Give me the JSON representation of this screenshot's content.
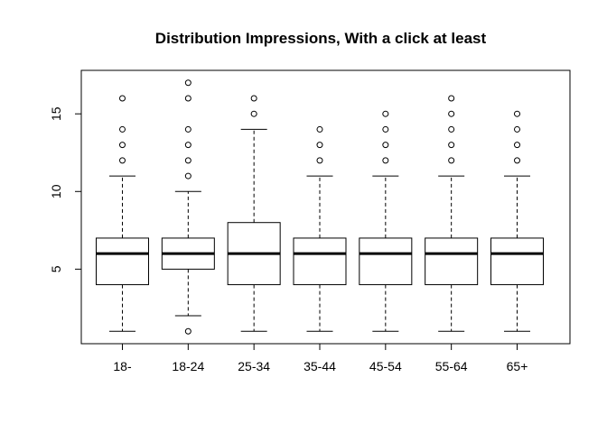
{
  "chart_data": {
    "type": "boxplot",
    "title": "Distribution Impressions, With a click at least",
    "xlabel": "",
    "ylabel": "",
    "ylim": [
      0.2,
      17.8
    ],
    "y_ticks": [
      5,
      10,
      15
    ],
    "grid": false,
    "categories": [
      "18-",
      "18-24",
      "25-34",
      "35-44",
      "45-54",
      "55-64",
      "65+"
    ],
    "boxes": [
      {
        "category": "18-",
        "whisker_low": 1,
        "q1": 4,
        "median": 6,
        "q3": 7,
        "whisker_high": 11,
        "outliers": [
          12,
          13,
          14,
          16
        ]
      },
      {
        "category": "18-24",
        "whisker_low": 2,
        "q1": 5,
        "median": 6,
        "q3": 7,
        "whisker_high": 10,
        "outliers": [
          1,
          11,
          12,
          13,
          14,
          16,
          17
        ]
      },
      {
        "category": "25-34",
        "whisker_low": 1,
        "q1": 4,
        "median": 6,
        "q3": 8,
        "whisker_high": 14,
        "outliers": [
          15,
          16
        ]
      },
      {
        "category": "35-44",
        "whisker_low": 1,
        "q1": 4,
        "median": 6,
        "q3": 7,
        "whisker_high": 11,
        "outliers": [
          12,
          13,
          14
        ]
      },
      {
        "category": "45-54",
        "whisker_low": 1,
        "q1": 4,
        "median": 6,
        "q3": 7,
        "whisker_high": 11,
        "outliers": [
          12,
          13,
          14,
          15
        ]
      },
      {
        "category": "55-64",
        "whisker_low": 1,
        "q1": 4,
        "median": 6,
        "q3": 7,
        "whisker_high": 11,
        "outliers": [
          12,
          13,
          14,
          15,
          16
        ]
      },
      {
        "category": "65+",
        "whisker_low": 1,
        "q1": 4,
        "median": 6,
        "q3": 7,
        "whisker_high": 11,
        "outliers": [
          12,
          13,
          14,
          15
        ]
      }
    ]
  }
}
